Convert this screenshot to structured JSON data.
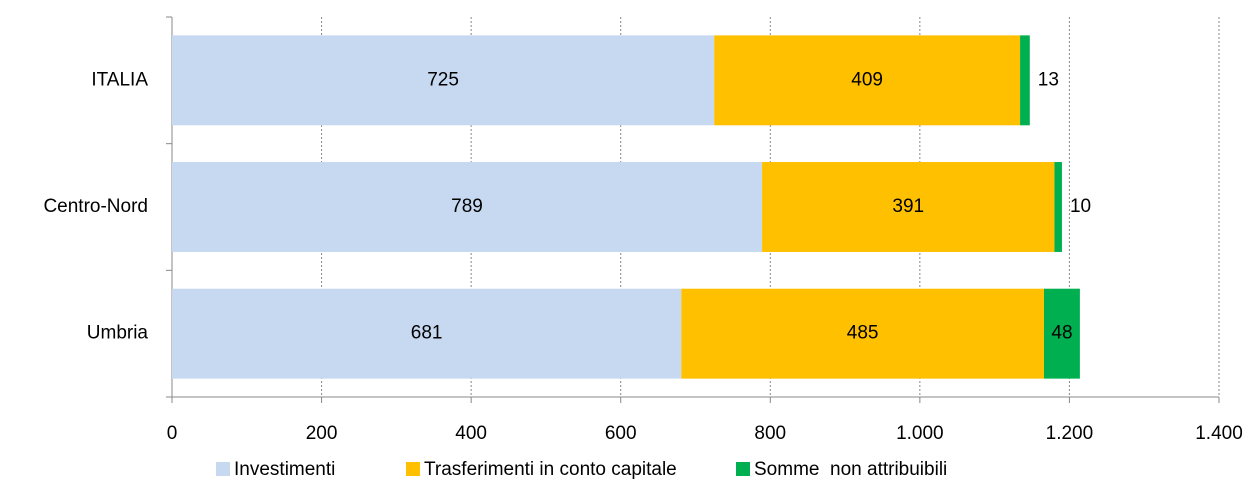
{
  "chart_data": {
    "type": "stacked-barh",
    "categories": [
      "ITALIA",
      "Centro-Nord",
      "Umbria"
    ],
    "series": [
      {
        "name": "Investimenti",
        "color": "#c6d9f1",
        "values": [
          725,
          789,
          681
        ]
      },
      {
        "name": "Trasferimenti in conto capitale",
        "color": "#ffc000",
        "values": [
          409,
          391,
          485
        ]
      },
      {
        "name": "Somme  non attribuibili",
        "color": "#00b050",
        "values": [
          13,
          10,
          48
        ]
      }
    ],
    "xlim": [
      0,
      1400
    ],
    "xticks": [
      0,
      200,
      400,
      600,
      800,
      {
        "value": 1000,
        "label": "1.000"
      },
      {
        "value": 1200,
        "label": "1.200"
      },
      {
        "value": 1400,
        "label": "1.400"
      }
    ],
    "grid": true,
    "legend": "bottom"
  }
}
